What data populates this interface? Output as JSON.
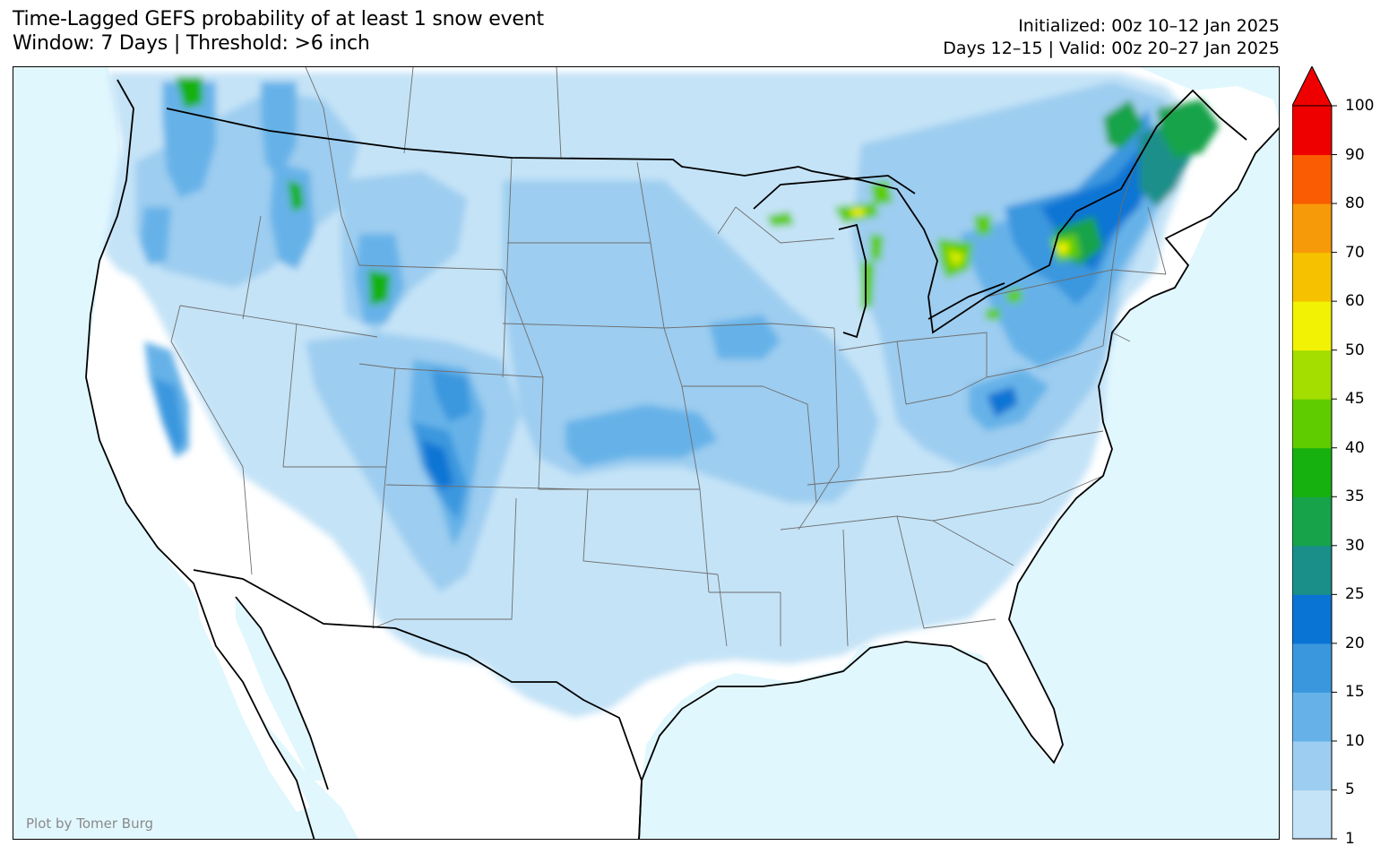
{
  "title": {
    "line1": "Time-Lagged GEFS probability of at least 1 snow event",
    "line2": "Window: 7 Days | Threshold: >6 inch"
  },
  "meta": {
    "initialized": "Initialized: 00z 10–12 Jan 2025",
    "valid": "Days 12–15 | Valid: 00z 20–27 Jan 2025"
  },
  "credit": "Plot by Tomer Burg",
  "colors": {
    "ocean": "#e1f7fe",
    "land": "#ffffff",
    "border": "#000000"
  },
  "colorbar": {
    "levels": [
      "1",
      "5",
      "10",
      "15",
      "20",
      "25",
      "30",
      "35",
      "40",
      "45",
      "50",
      "60",
      "70",
      "80",
      "90",
      "100"
    ],
    "colors": [
      "#c4e3f7",
      "#9dcdf0",
      "#66b2e8",
      "#3a97de",
      "#0a74d4",
      "#1a8f8a",
      "#17a34a",
      "#17b10f",
      "#5fcc00",
      "#a3de00",
      "#f2f204",
      "#f6c200",
      "#f79a0a",
      "#f95c02",
      "#ee0000"
    ],
    "extend": "max"
  },
  "icons": {
    "extend_arrow": "triangle-up-icon"
  }
}
